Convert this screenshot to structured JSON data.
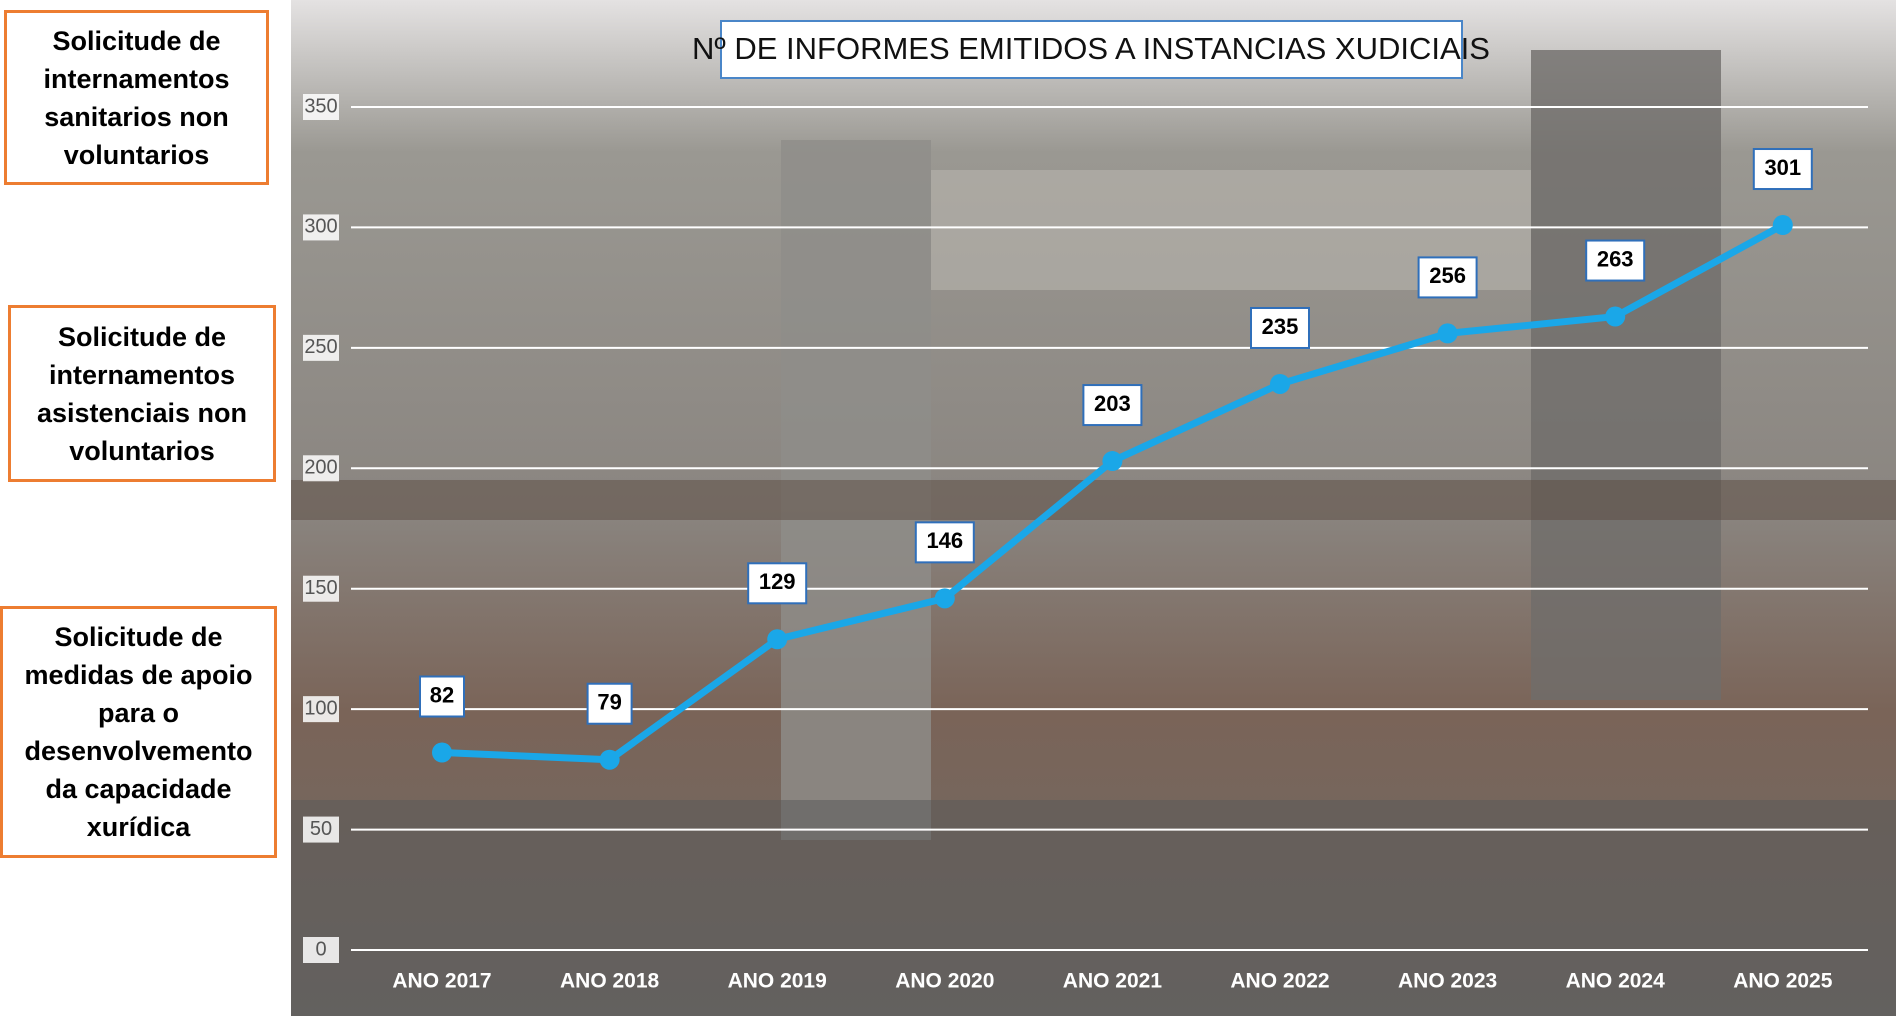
{
  "side_notes": [
    "Solicitude de internamentos sanitarios non voluntarios",
    "Solicitude de internamentos asistenciais non voluntarios",
    "Solicitude de medidas de apoio para o desenvolvemento da capacidade xurídica"
  ],
  "chart_data": {
    "type": "line",
    "title": "Nº DE INFORMES EMITIDOS A INSTANCIAS XUDICIAIS",
    "categories": [
      "ANO 2017",
      "ANO 2018",
      "ANO 2019",
      "ANO 2020",
      "ANO 2021",
      "ANO 2022",
      "ANO 2023",
      "ANO 2024",
      "ANO 2025"
    ],
    "values": [
      82,
      79,
      129,
      146,
      203,
      235,
      256,
      263,
      301
    ],
    "color": "#1aa7e8",
    "ylim": [
      0,
      350
    ],
    "yticks": [
      0,
      50,
      100,
      150,
      200,
      250,
      300,
      350
    ],
    "grid": true
  }
}
